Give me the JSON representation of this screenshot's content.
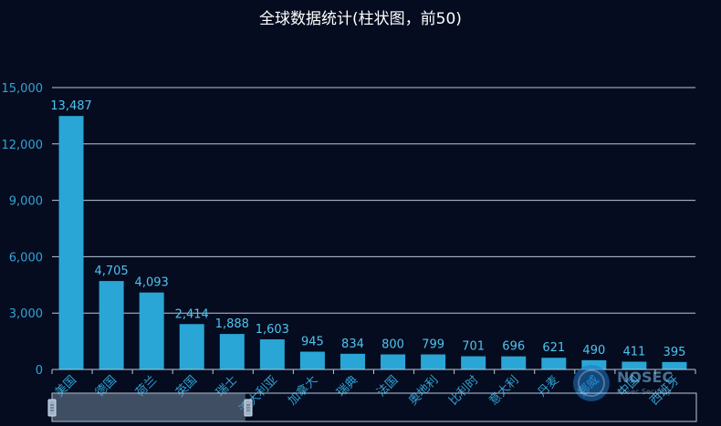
{
  "chart_data": {
    "type": "bar",
    "title": "全球数据统计(柱状图，前50)",
    "categories": [
      "美国",
      "德国",
      "荷兰",
      "英国",
      "瑞士",
      "澳大利亚",
      "加拿大",
      "瑞典",
      "法国",
      "奥地利",
      "比利时",
      "意大利",
      "丹麦",
      "挪威",
      "中国",
      "西班牙"
    ],
    "values": [
      13487,
      4705,
      4093,
      2414,
      1888,
      1603,
      945,
      834,
      800,
      799,
      701,
      696,
      621,
      490,
      411,
      395
    ],
    "value_labels": [
      "13,487",
      "4,705",
      "4,093",
      "2,414",
      "1,888",
      "1,603",
      "945",
      "834",
      "800",
      "799",
      "701",
      "696",
      "621",
      "490",
      "411",
      "395"
    ],
    "y_ticks": [
      "0",
      "3,000",
      "6,000",
      "9,000",
      "12,000",
      "15,000"
    ],
    "ylim": [
      0,
      15000
    ],
    "grid": true,
    "xlabel": "",
    "ylabel": "",
    "colors": {
      "bar": "#29a6d6",
      "bar_label": "#4fc3ee",
      "axis_text": "#31a3d4",
      "grid": "#b9c7d6",
      "background": "#050c20",
      "title": "#ffffff"
    }
  },
  "zoom": {
    "start_percent": 0,
    "end_percent": 30
  },
  "watermark": {
    "text": "NOSEC",
    "subtext": "Nosec Security"
  }
}
